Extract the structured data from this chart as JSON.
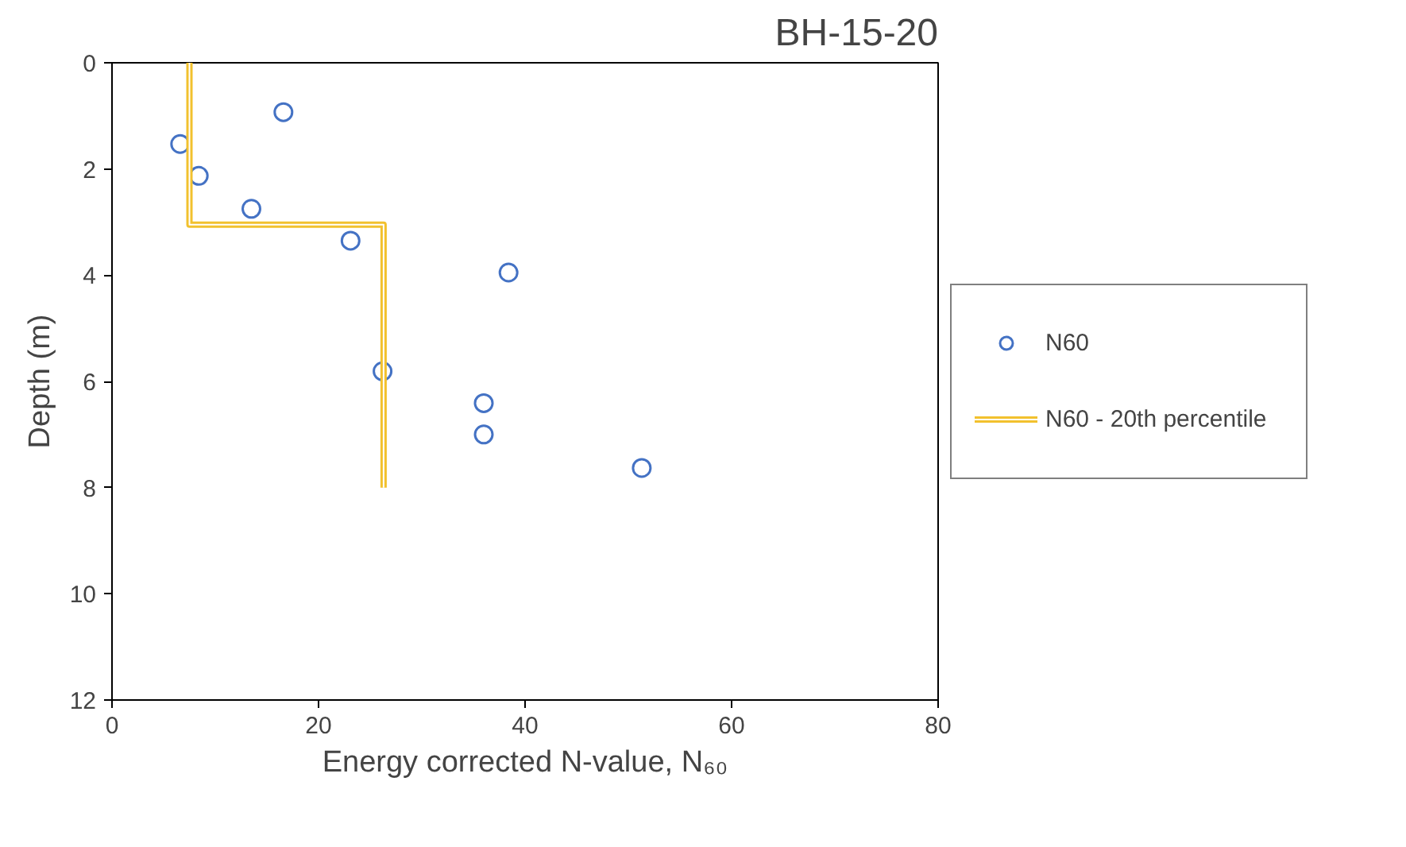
{
  "chart_data": {
    "type": "scatter",
    "xlabel": "Energy corrected N-value, N₆₀",
    "ylabel": "Depth (m)",
    "annotations": [
      "BH-15-20"
    ],
    "xlim": [
      0,
      80
    ],
    "xticks": [
      0,
      20,
      40,
      60,
      80
    ],
    "ylim": [
      12,
      0
    ],
    "yticks": [
      0,
      2,
      4,
      6,
      8,
      10,
      12
    ],
    "grid": false,
    "legend": "right",
    "marker": "circle",
    "series": [
      {
        "name": "N60",
        "color": "#4472c4",
        "x": [
          16.6,
          6.6,
          8.4,
          13.5,
          23.1,
          38.4,
          26.2,
          36.0,
          36.0,
          51.3
        ],
        "values": [
          0.93,
          1.53,
          2.13,
          2.75,
          3.35,
          3.95,
          5.81,
          6.41,
          7.0,
          7.63
        ]
      },
      {
        "name": "N60 - 20th percentile",
        "type": "line",
        "color": "#f2c12e",
        "marker": "none",
        "line_style": "solid",
        "x": [
          7.5,
          7.5,
          26.3,
          26.3
        ],
        "values": [
          0,
          3.05,
          3.05,
          8.0
        ]
      }
    ]
  }
}
